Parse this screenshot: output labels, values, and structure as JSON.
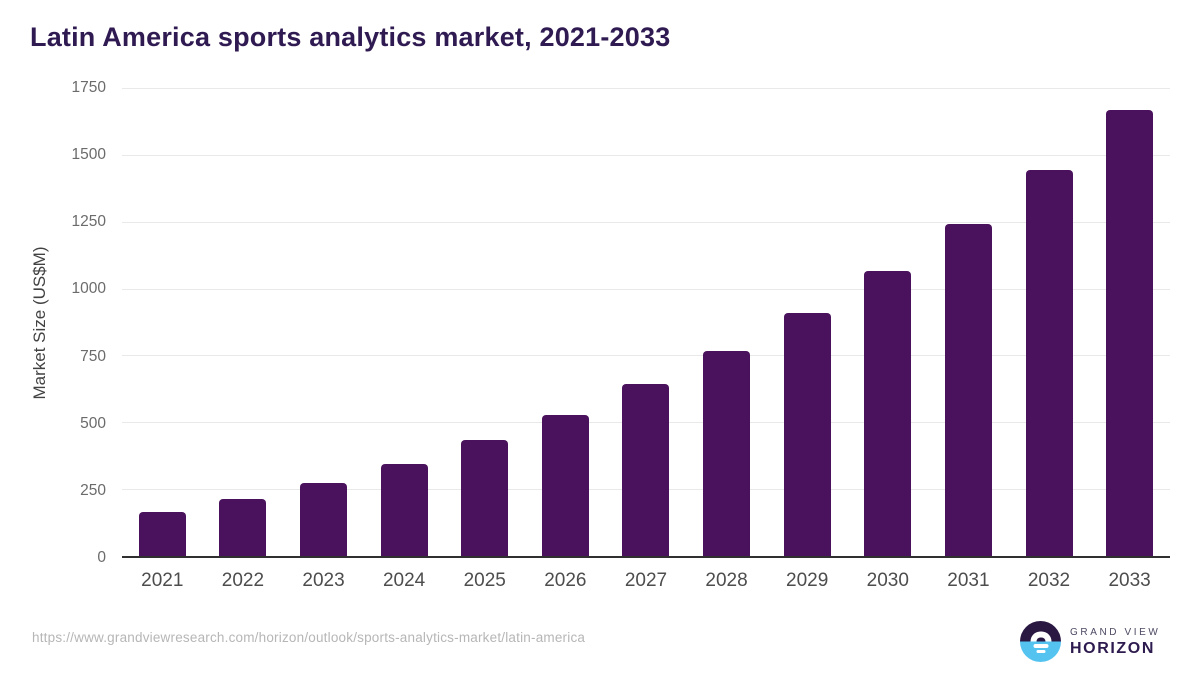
{
  "title": "Latin America sports analytics market, 2021-2033",
  "chart_data": {
    "type": "bar",
    "title": "Latin America sports analytics market, 2021-2033",
    "categories": [
      "2021",
      "2022",
      "2023",
      "2024",
      "2025",
      "2026",
      "2027",
      "2028",
      "2029",
      "2030",
      "2031",
      "2032",
      "2033"
    ],
    "values": [
      165,
      212,
      272,
      343,
      432,
      529,
      643,
      765,
      908,
      1064,
      1242,
      1443,
      1668
    ],
    "xlabel": "",
    "ylabel": "Market Size (US$M)",
    "ylim": [
      0,
      1750
    ],
    "yticks": [
      0,
      250,
      500,
      750,
      1000,
      1250,
      1500,
      1750
    ],
    "grid": true,
    "legend": "none",
    "bar_color": "#4a115c"
  },
  "footer": {
    "source_url": "https://www.grandviewresearch.com/horizon/outlook/sports-analytics-market/latin-america",
    "logo": {
      "line1": "GRAND VIEW",
      "line2": "HORIZON"
    }
  },
  "colors": {
    "title_text": "#2f1a52",
    "bar": "#4a115c",
    "gridline": "#e9e9e9",
    "axis_line": "#303030",
    "y_tick_text": "#6b6b6b",
    "x_tick_text": "#4d4d4d",
    "y_axis_title_text": "#424242",
    "source_url_text": "#b6b6b6",
    "logo_dark": "#2a1843",
    "logo_blue": "#55c3f0"
  }
}
